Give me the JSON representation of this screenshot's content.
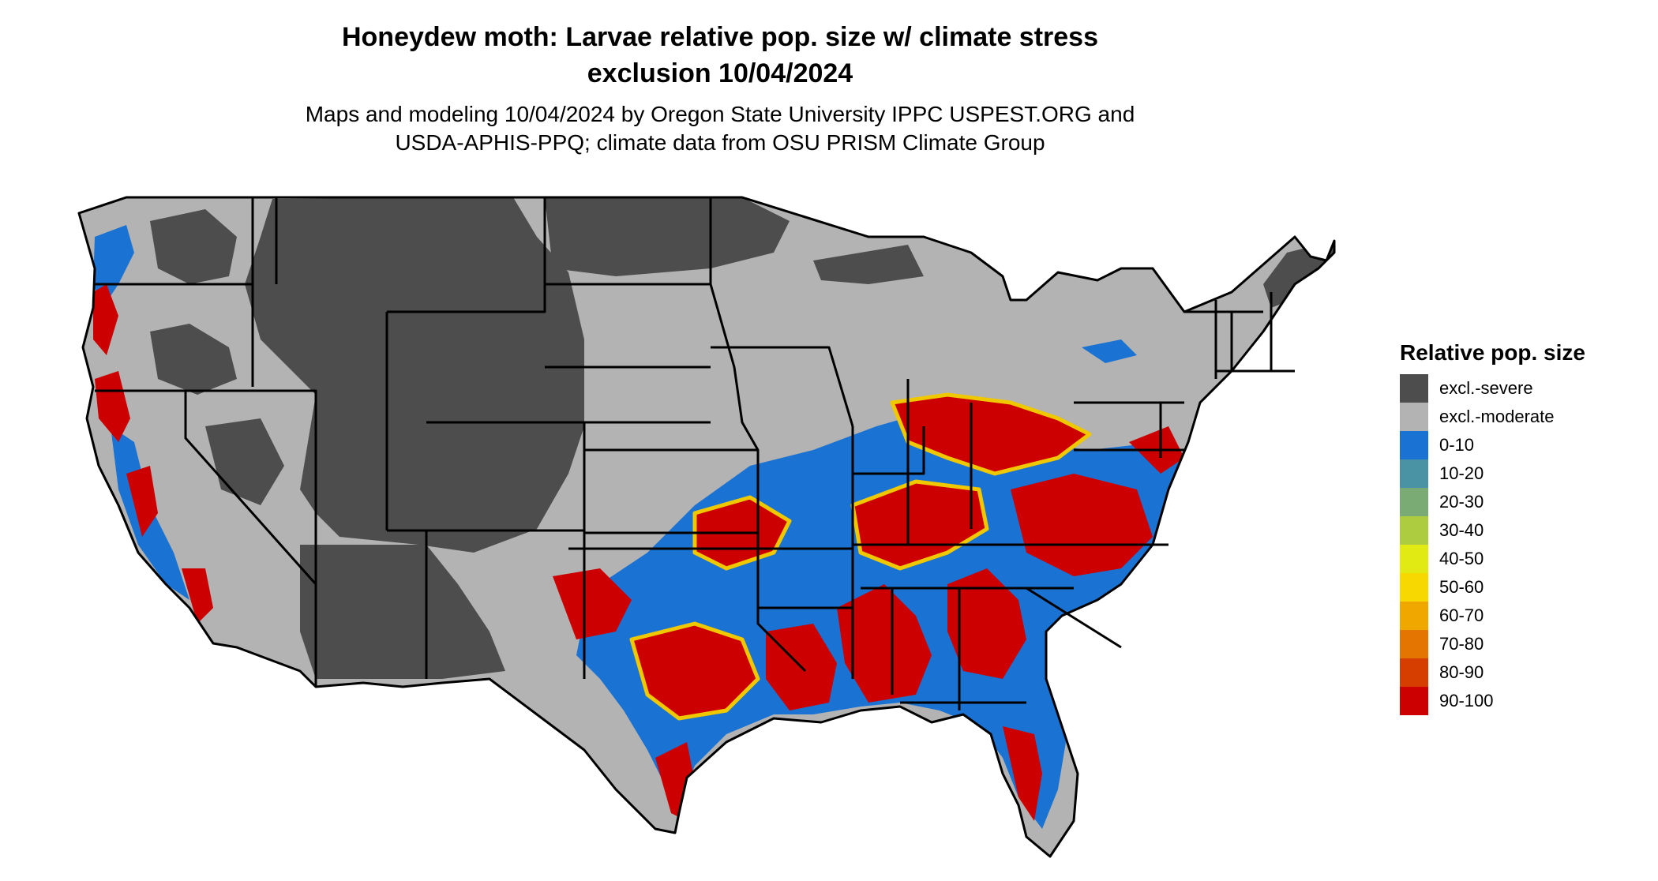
{
  "title": {
    "line1": "Honeydew moth: Larvae relative pop. size w/ climate stress",
    "line2": "exclusion 10/04/2024"
  },
  "subtitle": {
    "line1": "Maps and modeling 10/04/2024 by Oregon State University IPPC USPEST.ORG and",
    "line2": "USDA-APHIS-PPQ; climate data from OSU PRISM Climate Group"
  },
  "legend": {
    "title": "Relative pop. size",
    "items": [
      {
        "label": "excl.-severe",
        "color": "#4d4d4d"
      },
      {
        "label": "excl.-moderate",
        "color": "#b3b3b3"
      },
      {
        "label": "0-10",
        "color": "#1a73d2"
      },
      {
        "label": "10-20",
        "color": "#4a93a5"
      },
      {
        "label": "20-30",
        "color": "#7bab74"
      },
      {
        "label": "30-40",
        "color": "#adcc3f"
      },
      {
        "label": "40-50",
        "color": "#e2ea13"
      },
      {
        "label": "50-60",
        "color": "#f7d800"
      },
      {
        "label": "60-70",
        "color": "#f0a800"
      },
      {
        "label": "70-80",
        "color": "#e37500"
      },
      {
        "label": "80-90",
        "color": "#d63e00"
      },
      {
        "label": "90-100",
        "color": "#cc0000"
      }
    ]
  }
}
